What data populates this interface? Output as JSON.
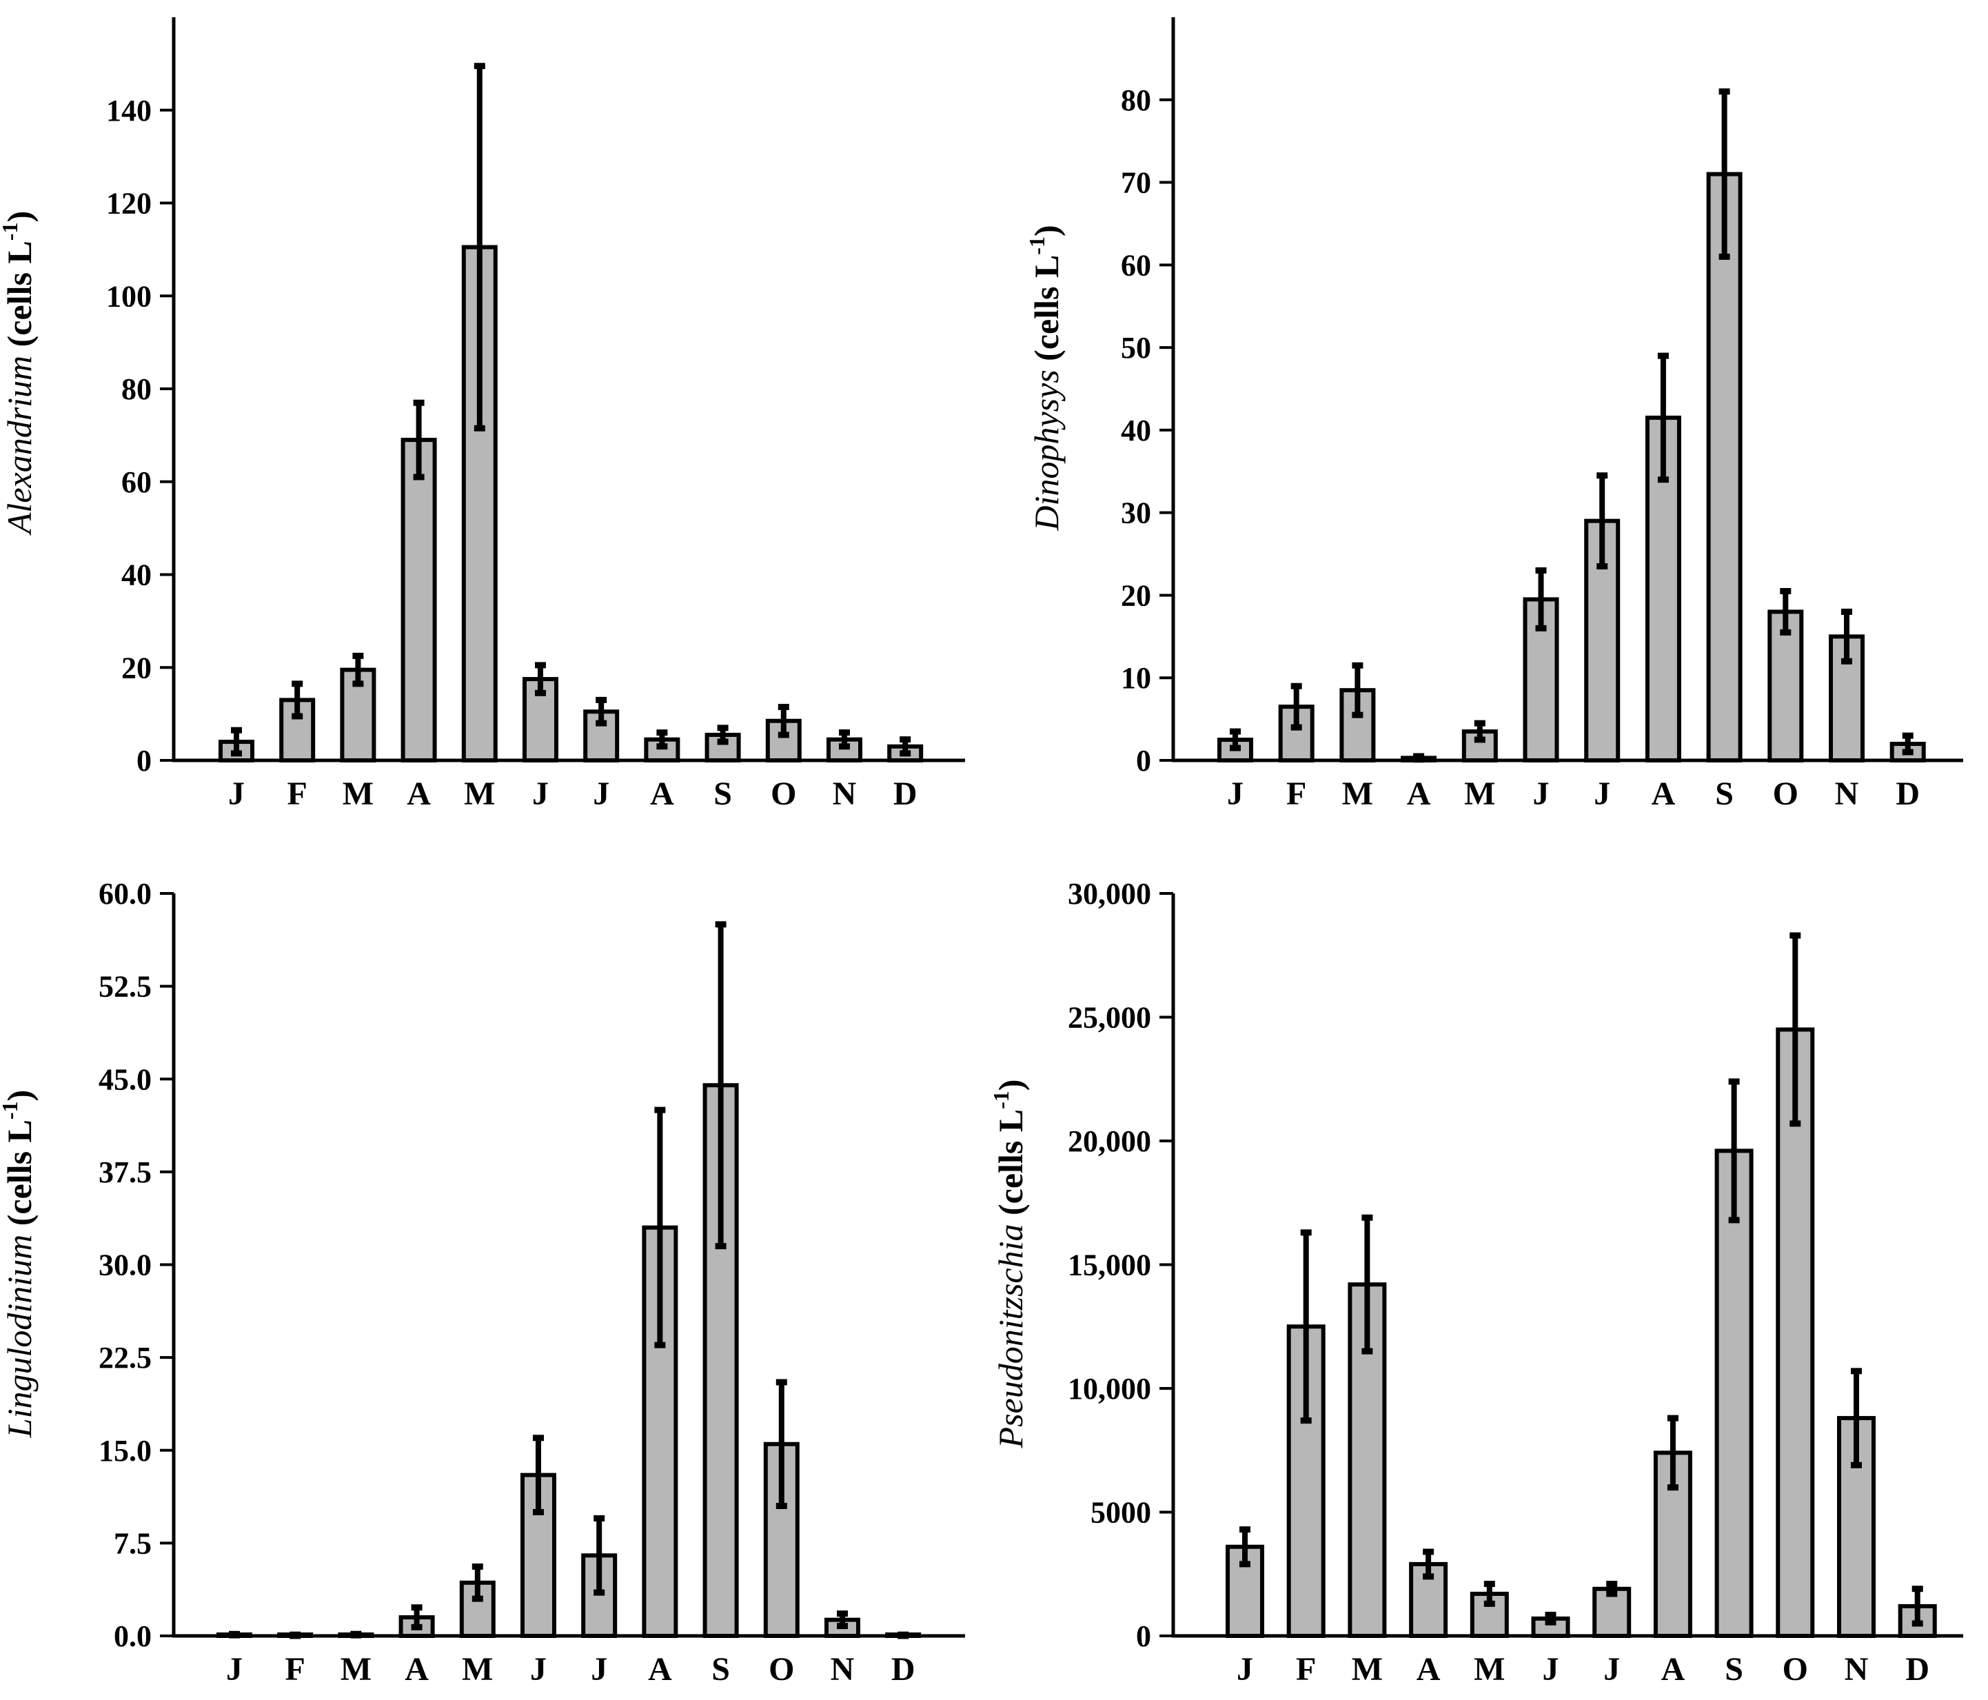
{
  "chart_data": [
    {
      "type": "bar",
      "panel": "top-left",
      "taxon": "Alexandrium",
      "ylabel_unit": "(cells L",
      "ylabel_exp": "-1",
      "ylabel_close": ")",
      "categories": [
        "J",
        "F",
        "M",
        "A",
        "M",
        "J",
        "J",
        "A",
        "S",
        "O",
        "N",
        "D"
      ],
      "values": [
        4,
        13,
        19.5,
        69,
        110.5,
        17.5,
        10.5,
        4.5,
        5.5,
        8.5,
        4.5,
        3
      ],
      "error": [
        2.5,
        3.5,
        3,
        8,
        39,
        3,
        2.5,
        1.5,
        1.5,
        3,
        1.5,
        1.5
      ],
      "ylim": [
        0,
        160
      ],
      "ticks": [
        0,
        20,
        40,
        60,
        80,
        100,
        120,
        140
      ],
      "tick_labels": [
        "0",
        "20",
        "40",
        "60",
        "80",
        "100",
        "120",
        "140"
      ]
    },
    {
      "type": "bar",
      "panel": "top-right",
      "taxon": "Dinophysys",
      "ylabel_unit": "(cells L",
      "ylabel_exp": "-1",
      "ylabel_close": ")",
      "categories": [
        "J",
        "F",
        "M",
        "A",
        "M",
        "J",
        "J",
        "A",
        "S",
        "O",
        "N",
        "D"
      ],
      "values": [
        2.5,
        6.5,
        8.5,
        0.3,
        3.5,
        19.5,
        29,
        41.5,
        71,
        18,
        15,
        2
      ],
      "error": [
        1,
        2.5,
        3,
        0.2,
        1,
        3.5,
        5.5,
        7.5,
        10,
        2.5,
        3,
        1
      ],
      "ylim": [
        0,
        90
      ],
      "ticks": [
        0,
        10,
        20,
        30,
        40,
        50,
        60,
        70,
        80
      ],
      "tick_labels": [
        "0",
        "10",
        "20",
        "30",
        "40",
        "50",
        "60",
        "70",
        "80"
      ]
    },
    {
      "type": "bar",
      "panel": "bottom-left",
      "taxon": "Lingulodinium",
      "ylabel_unit": "(cells L",
      "ylabel_exp": "-1",
      "ylabel_close": ")",
      "categories": [
        "J",
        "F",
        "M",
        "A",
        "M",
        "J",
        "J",
        "A",
        "S",
        "O",
        "N",
        "D"
      ],
      "values": [
        0.1,
        0.05,
        0.1,
        1.5,
        4.3,
        13,
        6.5,
        33,
        44.5,
        15.5,
        1.3,
        0.05
      ],
      "error": [
        0.05,
        0.05,
        0.05,
        0.8,
        1.3,
        3,
        3,
        9.5,
        13,
        5,
        0.5,
        0.05
      ],
      "ylim": [
        0,
        60
      ],
      "ticks": [
        0,
        7.5,
        15,
        22.5,
        30,
        37.5,
        45,
        52.5,
        60
      ],
      "tick_labels": [
        "0.0",
        "7.5",
        "15.0",
        "22.5",
        "30.0",
        "37.5",
        "45.0",
        "52.5",
        "60.0"
      ]
    },
    {
      "type": "bar",
      "panel": "bottom-right",
      "taxon": "Pseudonitzschia",
      "ylabel_unit": "(cells L",
      "ylabel_exp": "-1",
      "ylabel_close": ")",
      "categories": [
        "J",
        "F",
        "M",
        "A",
        "M",
        "J",
        "J",
        "A",
        "S",
        "O",
        "N",
        "D"
      ],
      "values": [
        3600,
        12500,
        14200,
        2900,
        1700,
        700,
        1900,
        7400,
        19600,
        24500,
        8800,
        1200
      ],
      "error": [
        700,
        3800,
        2700,
        500,
        400,
        150,
        200,
        1400,
        2800,
        3800,
        1900,
        700
      ],
      "ylim": [
        0,
        30000
      ],
      "ticks": [
        0,
        5000,
        10000,
        15000,
        20000,
        25000,
        30000
      ],
      "tick_labels": [
        "0",
        "5000",
        "10,000",
        "15,000",
        "20,000",
        "25,000",
        "30,000"
      ]
    }
  ]
}
